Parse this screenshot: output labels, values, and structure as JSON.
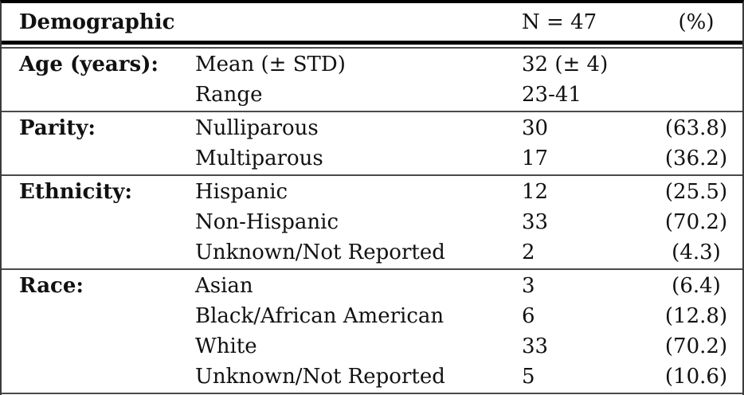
{
  "table": {
    "header": {
      "demographic": "Demographic",
      "n": "N = 47",
      "pct": "(%)"
    },
    "sections": [
      {
        "category": "Age (years):",
        "rows": [
          {
            "label": "Mean (± STD)",
            "n": "32 (± 4)",
            "pct": ""
          },
          {
            "label": "Range",
            "n": "23-41",
            "pct": ""
          }
        ]
      },
      {
        "category": "Parity:",
        "rows": [
          {
            "label": "Nulliparous",
            "n": "30",
            "pct": "(63.8)"
          },
          {
            "label": "Multiparous",
            "n": "17",
            "pct": "(36.2)"
          }
        ]
      },
      {
        "category": "Ethnicity:",
        "rows": [
          {
            "label": "Hispanic",
            "n": "12",
            "pct": "(25.5)"
          },
          {
            "label": "Non-Hispanic",
            "n": "33",
            "pct": "(70.2)"
          },
          {
            "label": "Unknown/Not Reported",
            "n": "2",
            "pct": "(4.3)"
          }
        ]
      },
      {
        "category": "Race:",
        "rows": [
          {
            "label": "Asian",
            "n": "3",
            "pct": "(6.4)"
          },
          {
            "label": "Black/African American",
            "n": "6",
            "pct": "(12.8)"
          },
          {
            "label": "White",
            "n": "33",
            "pct": "(70.2)"
          },
          {
            "label": "Unknown/Not Reported",
            "n": "5",
            "pct": "(10.6)"
          }
        ]
      }
    ],
    "colors": {
      "rule_thick": "#000000",
      "rule_thin": "#4a4a4a",
      "text": "#111111",
      "background": "#ffffff"
    }
  }
}
